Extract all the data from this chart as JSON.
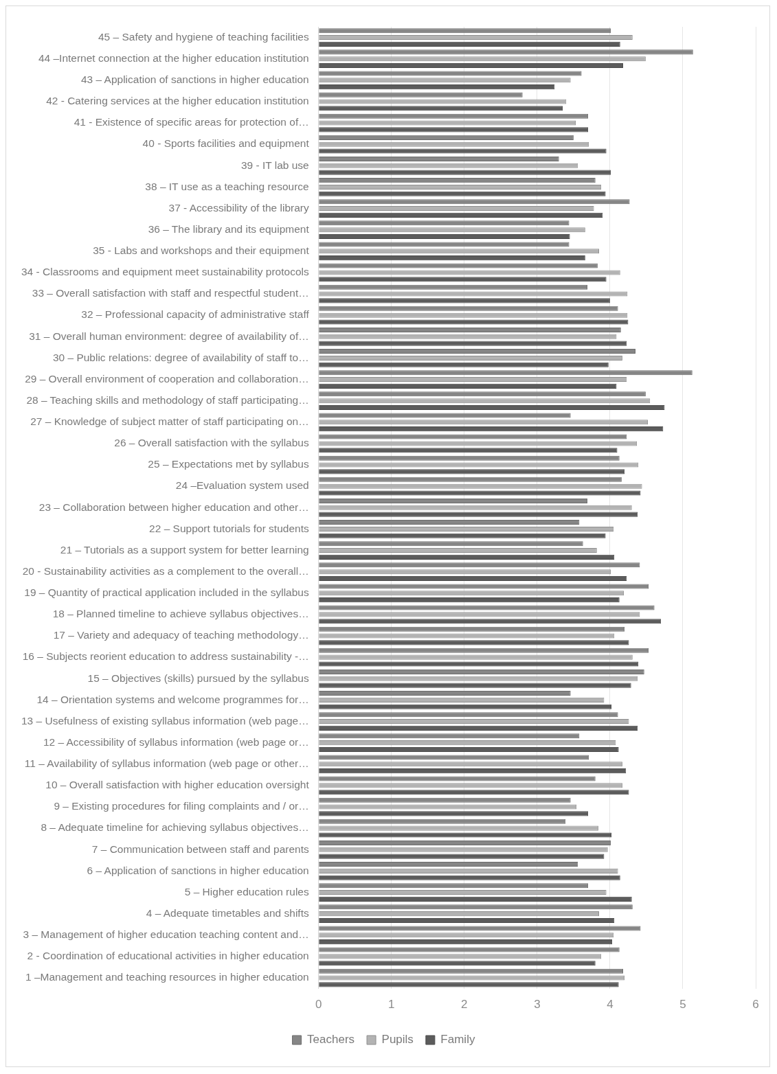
{
  "chart_data": {
    "type": "bar",
    "orientation": "horizontal",
    "categories": [
      "45 – Safety and hygiene of teaching facilities",
      "44 –Internet connection at the higher education institution",
      "43 – Application of sanctions in higher education",
      "42 - Catering services at the higher education institution",
      "41 - Existence of specific areas for protection of…",
      "40 - Sports facilities and equipment",
      "39 - IT lab use",
      "38 – IT use as a teaching resource",
      "37 - Accessibility of the library",
      "36 – The library and its equipment",
      "35 - Labs and workshops and their equipment",
      "34 - Classrooms and equipment meet sustainability protocols",
      "33 – Overall satisfaction with staff and respectful student…",
      "32 – Professional capacity of administrative staff",
      "31 – Overall human environment: degree of availability of…",
      "30 – Public relations: degree of availability of staff to…",
      "29 – Overall environment of cooperation and collaboration…",
      "28 – Teaching skills and methodology of staff participating…",
      "27 – Knowledge of subject matter of staff participating on…",
      "26 – Overall satisfaction with the syllabus",
      "25 – Expectations met by syllabus",
      "24 –Evaluation system used",
      "23 – Collaboration between higher education and other…",
      "22 – Support tutorials for students",
      "21 – Tutorials as a support system for better learning",
      "20 - Sustainability activities as a complement to the overall…",
      "19 – Quantity of practical application included in the syllabus",
      "18 – Planned timeline to achieve syllabus objectives…",
      "17 – Variety and adequacy of teaching methodology…",
      "16 – Subjects reorient education to address sustainability -…",
      "15 – Objectives (skills) pursued by the syllabus",
      "14 – Orientation systems and welcome programmes for…",
      "13 – Usefulness of existing syllabus information (web page…",
      "12 – Accessibility of syllabus information (web page or…",
      "11 – Availability of syllabus information (web page or other…",
      "10 – Overall satisfaction with higher education oversight",
      "9 – Existing procedures for filing complaints and / or…",
      "8 – Adequate timeline for achieving syllabus objectives…",
      "7 – Communication between staff and parents",
      "6 – Application of sanctions in higher education",
      "5 – Higher education rules",
      "4 – Adequate timetables and shifts",
      "3 – Management of higher education teaching content and…",
      "2 - Coordination of educational activities in higher education",
      "1 –Management and teaching resources in higher education"
    ],
    "series": [
      {
        "name": "Teachers",
        "color": "#868686",
        "values": [
          4.01,
          5.14,
          3.61,
          2.8,
          3.7,
          3.5,
          3.3,
          3.8,
          4.27,
          3.44,
          3.44,
          3.83,
          3.69,
          4.11,
          4.15,
          4.35,
          5.13,
          4.49,
          3.46,
          4.23,
          4.13,
          4.16,
          3.69,
          3.58,
          3.63,
          4.41,
          4.53,
          4.61,
          4.2,
          4.53,
          4.47,
          3.46,
          4.11,
          3.58,
          3.71,
          3.8,
          3.46,
          3.39,
          4.01,
          3.56,
          3.7,
          4.31,
          4.42,
          4.13,
          4.18
        ]
      },
      {
        "name": "Pupils",
        "color": "#b3b3b3",
        "values": [
          4.31,
          4.49,
          3.46,
          3.4,
          3.53,
          3.71,
          3.56,
          3.88,
          3.78,
          3.66,
          3.85,
          4.14,
          4.24,
          4.24,
          4.09,
          4.17,
          4.23,
          4.55,
          4.52,
          4.37,
          4.39,
          4.44,
          4.3,
          4.05,
          3.82,
          4.01,
          4.19,
          4.41,
          4.06,
          4.31,
          4.38,
          3.92,
          4.26,
          4.08,
          4.17,
          4.17,
          3.54,
          3.84,
          3.97,
          4.11,
          3.95,
          3.85,
          4.05,
          3.88,
          4.2
        ]
      },
      {
        "name": "Family",
        "color": "#5c5c5c",
        "values": [
          4.14,
          4.18,
          3.24,
          3.35,
          3.7,
          3.95,
          4.01,
          3.94,
          3.9,
          3.45,
          3.66,
          3.95,
          4.0,
          4.25,
          4.23,
          3.98,
          4.09,
          4.75,
          4.73,
          4.1,
          4.2,
          4.42,
          4.38,
          3.94,
          4.06,
          4.23,
          4.13,
          4.7,
          4.26,
          4.39,
          4.29,
          4.02,
          4.38,
          4.12,
          4.22,
          4.26,
          3.7,
          4.02,
          3.92,
          4.14,
          4.3,
          4.06,
          4.03,
          3.8,
          4.12
        ]
      }
    ],
    "xlim": [
      0,
      6
    ],
    "xticks": [
      0,
      1,
      2,
      3,
      4,
      5,
      6
    ],
    "grid": "x",
    "legend": "bottom"
  }
}
